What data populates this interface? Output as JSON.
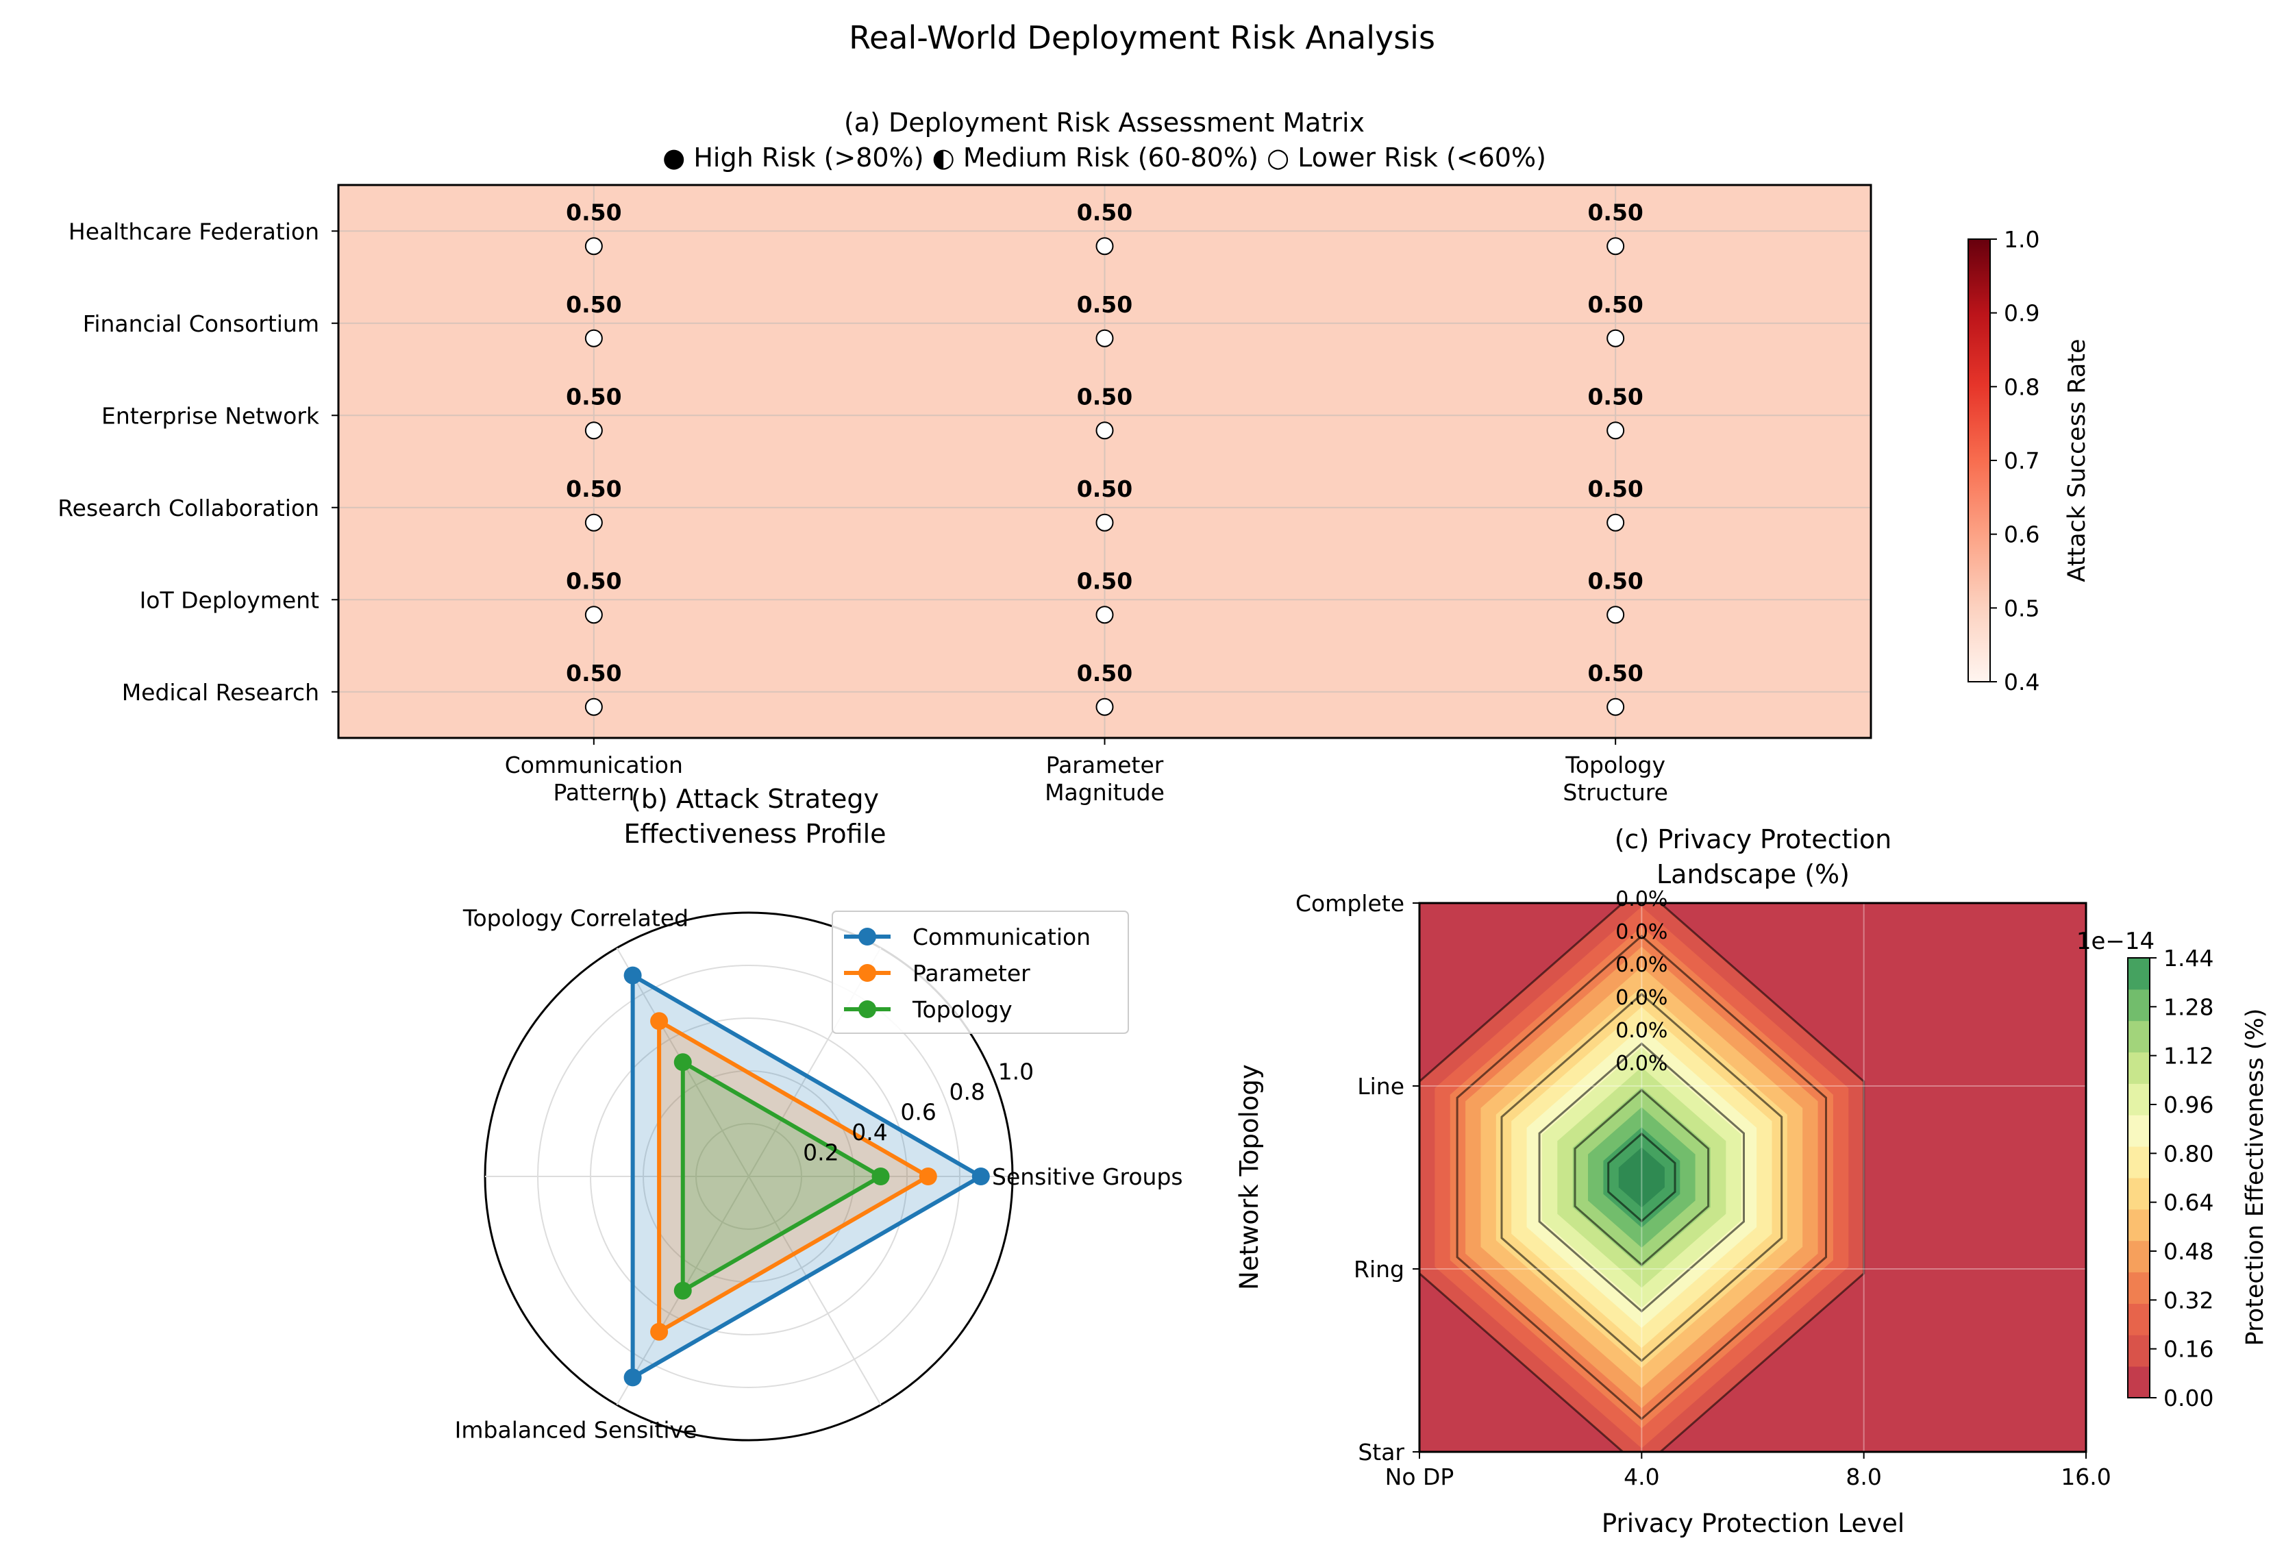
{
  "figure": {
    "title": "Real-World Deployment Risk Analysis"
  },
  "chart_data": [
    {
      "type": "heatmap",
      "title": "(a) Deployment Risk Assessment Matrix",
      "subtitle": "● High Risk (>80%)  ◐ Medium Risk (60-80%)  ○ Lower Risk (<60%)",
      "rows": [
        "Healthcare Federation",
        "Financial Consortium",
        "Enterprise Network",
        "Research Collaboration",
        "IoT Deployment",
        "Medical Research"
      ],
      "columns": [
        [
          "Communication",
          "Pattern"
        ],
        [
          "Parameter",
          "Magnitude"
        ],
        [
          "Topology",
          "Structure"
        ]
      ],
      "values": [
        [
          0.5,
          0.5,
          0.5
        ],
        [
          0.5,
          0.5,
          0.5
        ],
        [
          0.5,
          0.5,
          0.5
        ],
        [
          0.5,
          0.5,
          0.5
        ],
        [
          0.5,
          0.5,
          0.5
        ],
        [
          0.5,
          0.5,
          0.5
        ]
      ],
      "value_labels": [
        [
          "0.50",
          "0.50",
          "0.50"
        ],
        [
          "0.50",
          "0.50",
          "0.50"
        ],
        [
          "0.50",
          "0.50",
          "0.50"
        ],
        [
          "0.50",
          "0.50",
          "0.50"
        ],
        [
          "0.50",
          "0.50",
          "0.50"
        ],
        [
          "0.50",
          "0.50",
          "0.50"
        ]
      ],
      "risk_marker": "lower",
      "colorbar": {
        "label": "Attack Success Rate",
        "range": [
          0.4,
          1.0
        ],
        "ticks": [
          "0.4",
          "0.5",
          "0.6",
          "0.7",
          "0.8",
          "0.9",
          "1.0"
        ],
        "colormap": "Reds"
      },
      "grid": true
    },
    {
      "type": "radar",
      "title": [
        "(b) Attack Strategy",
        "Effectiveness Profile"
      ],
      "axes": [
        "Sensitive Groups",
        "Topology Correlated",
        "Imbalanced Sensitive"
      ],
      "radial_ticks": [
        "0.2",
        "0.4",
        "0.6",
        "0.8",
        "1.0"
      ],
      "rlim": [
        0,
        1.0
      ],
      "legend_position": "top-right",
      "series": [
        {
          "name": "Communication",
          "values": [
            0.88,
            0.88,
            0.88
          ],
          "color": "#1f77b4"
        },
        {
          "name": "Parameter",
          "values": [
            0.68,
            0.68,
            0.68
          ],
          "color": "#ff7f0e"
        },
        {
          "name": "Topology",
          "values": [
            0.5,
            0.5,
            0.5
          ],
          "color": "#2ca02c"
        }
      ],
      "grid": true
    },
    {
      "type": "contour",
      "title": [
        "(c) Privacy Protection",
        "Landscape (%)"
      ],
      "xlabel": "Privacy Protection Level",
      "ylabel": "Network Topology",
      "x_ticks": [
        "No DP",
        "4.0",
        "8.0",
        "16.0"
      ],
      "y_ticks": [
        "Star",
        "Ring",
        "Line",
        "Complete"
      ],
      "peak": {
        "x": "4.0",
        "y_between": [
          "Ring",
          "Line"
        ]
      },
      "contour_labels": [
        "0.0%",
        "0.0%",
        "0.0%",
        "0.0%",
        "0.0%",
        "0.0%"
      ],
      "colorbar": {
        "label": "Protection Effectiveness (%)",
        "offset_label": "1e−14",
        "range": [
          0.0,
          1.44
        ],
        "ticks": [
          "0.00",
          "0.16",
          "0.32",
          "0.48",
          "0.64",
          "0.80",
          "0.96",
          "1.12",
          "1.28",
          "1.44"
        ],
        "colormap": "RdYlGn"
      },
      "grid": true
    }
  ]
}
